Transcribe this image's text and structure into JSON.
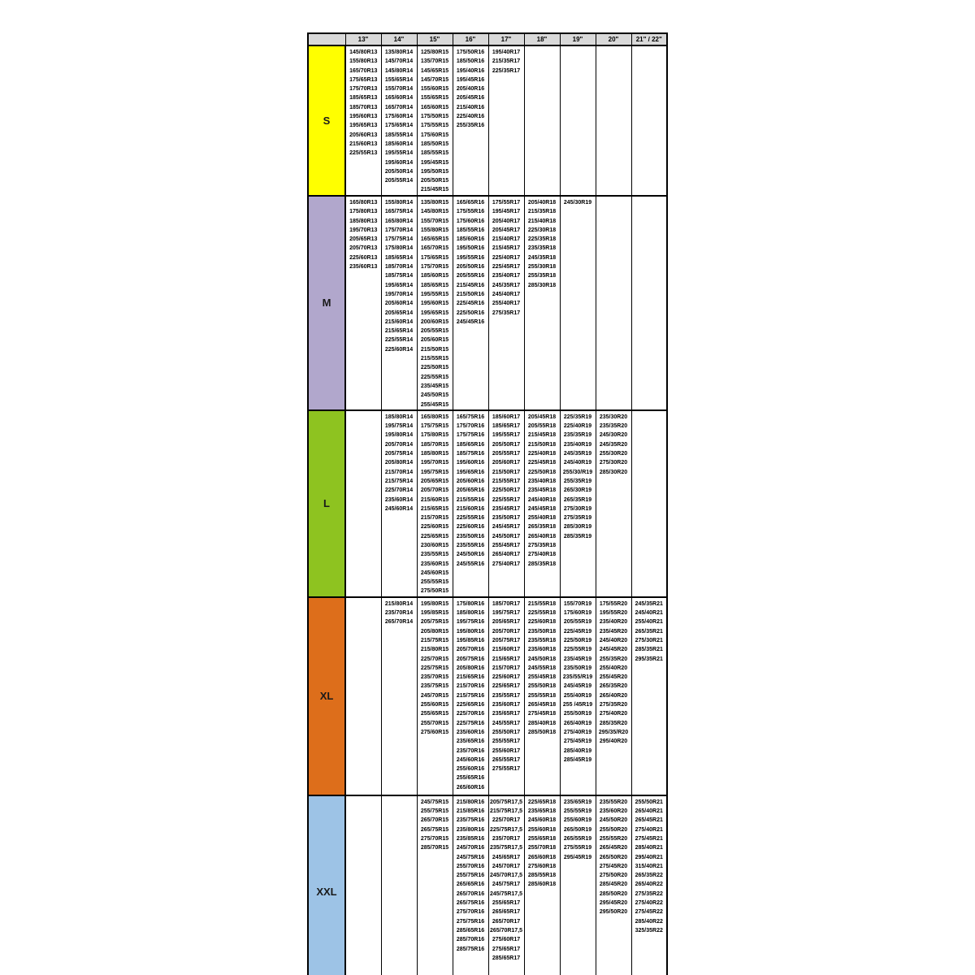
{
  "chart_data": {
    "type": "table",
    "description_colors": {
      "header_bg": "#d9d9d9",
      "S": "#ffff00",
      "M": "#b1a7cc",
      "L": "#8ec320",
      "XL": "#dd6e1b",
      "XXL": "#9dc3e6"
    },
    "header": [
      "",
      "13\"",
      "14\"",
      "15\"",
      "16\"",
      "17\"",
      "18\"",
      "19\"",
      "20\"",
      "21\" / 22\""
    ],
    "rows": [
      {
        "label": "S",
        "color": "#ffff00",
        "cols": [
          [
            "145/80R13",
            "155/80R13",
            "165/70R13",
            "175/65R13",
            "175/70R13",
            "185/65R13",
            "185/70R13",
            "195/60R13",
            "195/65R13",
            "205/60R13",
            "215/60R13",
            "225/55R13"
          ],
          [
            "135/80R14",
            "145/70R14",
            "145/80R14",
            "155/65R14",
            "155/70R14",
            "165/60R14",
            "165/70R14",
            "175/60R14",
            "175/65R14",
            "185/55R14",
            "185/60R14",
            "195/55R14",
            "195/60R14",
            "205/50R14",
            "205/55R14"
          ],
          [
            "125/80R15",
            "135/70R15",
            "145/65R15",
            "145/70R15",
            "155/60R15",
            "155/65R15",
            "165/60R15",
            "175/50R15",
            "175/55R15",
            "175/60R15",
            "185/50R15",
            "185/55R15",
            "195/45R15",
            "195/50R15",
            "205/50R15",
            "215/45R15"
          ],
          [
            "175/50R16",
            "185/50R16",
            "195/40R16",
            "195/45R16",
            "205/40R16",
            "205/45R16",
            "215/40R16",
            "225/40R16",
            "255/35R16"
          ],
          [
            "195/40R17",
            "215/35R17",
            "225/35R17"
          ],
          [],
          [],
          [],
          []
        ]
      },
      {
        "label": "M",
        "color": "#b1a7cc",
        "cols": [
          [
            "165/80R13",
            "175/80R13",
            "185/80R13",
            "195/70R13",
            "205/65R13",
            "205/70R13",
            "225/60R13",
            "235/60R13"
          ],
          [
            "155/80R14",
            "165/75R14",
            "165/80R14",
            "175/70R14",
            "175/75R14",
            "175/80R14",
            "185/65R14",
            "185/70R14",
            "185/75R14",
            "195/65R14",
            "195/70R14",
            "205/60R14",
            "205/65R14",
            "215/60R14",
            "215/65R14",
            "225/55R14",
            "225/60R14"
          ],
          [
            "135/80R15",
            "145/80R15",
            "155/70R15",
            "155/80R15",
            "165/65R15",
            "165/70R15",
            "175/65R15",
            "175/70R15",
            "185/60R15",
            "185/65R15",
            "195/55R15",
            "195/60R15",
            "195/65R15",
            "200/60R15",
            "205/55R15",
            "205/60R15",
            "215/50R15",
            "215/55R15",
            "225/50R15",
            "225/55R15",
            "235/45R15",
            "245/50R15",
            "255/45R15"
          ],
          [
            "165/65R16",
            "175/55R16",
            "175/60R16",
            "185/55R16",
            "185/60R16",
            "195/50R16",
            "195/55R16",
            "205/50R16",
            "205/55R16",
            "215/45R16",
            "215/50R16",
            "225/45R16",
            "225/50R16",
            "245/45R16"
          ],
          [
            "175/55R17",
            "195/45R17",
            "205/40R17",
            "205/45R17",
            "215/40R17",
            "215/45R17",
            "225/40R17",
            "225/45R17",
            "235/40R17",
            "245/35R17",
            "245/40R17",
            "255/40R17",
            "275/35R17"
          ],
          [
            "205/40R18",
            "215/35R18",
            "215/40R18",
            "225/30R18",
            "225/35R18",
            "235/35R18",
            "245/35R18",
            "255/30R18",
            "255/35R18",
            "285/30R18"
          ],
          [
            "245/30R19"
          ],
          [],
          []
        ]
      },
      {
        "label": "L",
        "color": "#8ec320",
        "cols": [
          [],
          [
            "185/80R14",
            "195/75R14",
            "195/80R14",
            "205/70R14",
            "205/75R14",
            "205/80R14",
            "215/70R14",
            "215/75R14",
            "225/70R14",
            "235/60R14",
            "245/60R14"
          ],
          [
            "165/80R15",
            "175/75R15",
            "175/80R15",
            "185/70R15",
            "185/80R15",
            "195/70R15",
            "195/75R15",
            "205/65R15",
            "205/70R15",
            "215/60R15",
            "215/65R15",
            "215/70R15",
            "225/60R15",
            "225/65R15",
            "230/60R15",
            "235/55R15",
            "235/60R15",
            "245/60R15",
            "255/55R15",
            "275/50R15"
          ],
          [
            "165/75R16",
            "175/70R16",
            "175/75R16",
            "185/65R16",
            "185/75R16",
            "195/60R16",
            "195/65R16",
            "205/60R16",
            "205/65R16",
            "215/55R16",
            "215/60R16",
            "225/55R16",
            "225/60R16",
            "235/50R16",
            "235/55R16",
            "245/50R16",
            "245/55R16"
          ],
          [
            "185/60R17",
            "185/65R17",
            "195/55R17",
            "205/50R17",
            "205/55R17",
            "205/60R17",
            "215/50R17",
            "215/55R17",
            "225/50R17",
            "225/55R17",
            "235/45R17",
            "235/50R17",
            "245/45R17",
            "245/50R17",
            "255/45R17",
            "265/40R17",
            "275/40R17"
          ],
          [
            "205/45R18",
            "205/55R18",
            "215/45R18",
            "215/50R18",
            "225/40R18",
            "225/45R18",
            "225/50R18",
            "235/40R18",
            "235/45R18",
            "245/40R18",
            "245/45R18",
            "255/40R18",
            "265/35R18",
            "265/40R18",
            "275/35R18",
            "275/40R18",
            "285/35R18"
          ],
          [
            "225/35R19",
            "225/40R19",
            "235/35R19",
            "235/40R19",
            "245/35R19",
            "245/40R19",
            "255/30/R19",
            "255/35R19",
            "265/30R19",
            "265/35R19",
            "275/30R19",
            "275/35R19",
            "285/30R19",
            "285/35R19"
          ],
          [
            "235/30R20",
            "235/35R20",
            "245/30R20",
            "245/35R20",
            "255/30R20",
            "275/30R20",
            "285/30R20"
          ],
          []
        ]
      },
      {
        "label": "XL",
        "color": "#dd6e1b",
        "cols": [
          [],
          [
            "215/80R14",
            "235/70R14",
            "265/70R14"
          ],
          [
            "195/80R15",
            "195/85R15",
            "205/75R15",
            "205/80R15",
            "215/75R15",
            "215/80R15",
            "225/70R15",
            "225/75R15",
            "235/70R15",
            "235/75R15",
            "245/70R15",
            "255/60R15",
            "255/65R15",
            "255/70R15",
            "275/60R15"
          ],
          [
            "175/80R16",
            "185/80R16",
            "195/75R16",
            "195/80R16",
            "195/85R16",
            "205/70R16",
            "205/75R16",
            "205/80R16",
            "215/65R16",
            "215/70R16",
            "215/75R16",
            "225/65R16",
            "225/70R16",
            "225/75R16",
            "235/60R16",
            "235/65R16",
            "235/70R16",
            "245/60R16",
            "255/60R16",
            "255/65R16",
            "265/60R16"
          ],
          [
            "185/70R17",
            "195/75R17",
            "205/65R17",
            "205/70R17",
            "205/75R17",
            "215/60R17",
            "215/65R17",
            "215/70R17",
            "225/60R17",
            "225/65R17",
            "235/55R17",
            "235/60R17",
            "235/65R17",
            "245/55R17",
            "255/50R17",
            "255/55R17",
            "255/60R17",
            "265/55R17",
            "275/55R17"
          ],
          [
            "215/55R18",
            "225/55R18",
            "225/60R18",
            "235/50R18",
            "235/55R18",
            "235/60R18",
            "245/50R18",
            "245/55R18",
            "255/45R18",
            "255/50R18",
            "255/55R18",
            "265/45R18",
            "275/45R18",
            "285/40R18",
            "285/50R18"
          ],
          [
            "155/70R19",
            "175/60R19",
            "205/55R19",
            "225/45R19",
            "225/50R19",
            "225/55R19",
            "235/45R19",
            "235/50R19",
            "235/55/R19",
            "245/45R19",
            "255/40R19",
            "255 /45R19",
            "255/50R19",
            "265/40R19",
            "275/40R19",
            "275/45R19",
            "285/40R19",
            "285/45R19"
          ],
          [
            "175/55R20",
            "195/55R20",
            "235/40R20",
            "235/45R20",
            "245/40R20",
            "245/45R20",
            "255/35R20",
            "255/40R20",
            "255/45R20",
            "265/35R20",
            "265/40R20",
            "275/35R20",
            "275/40R20",
            "285/35R20",
            "295/35/R20",
            "295/40R20"
          ],
          [
            "245/35R21",
            "245/40R21",
            "255/40R21",
            "265/35R21",
            "275/30R21",
            "285/35R21",
            "295/35R21"
          ]
        ]
      },
      {
        "label": "XXL",
        "color": "#9dc3e6",
        "cols": [
          [],
          [],
          [
            "245/75R15",
            "255/75R15",
            "265/70R15",
            "265/75R15",
            "275/70R15",
            "285/70R15"
          ],
          [
            "215/80R16",
            "215/85R16",
            "235/75R16",
            "235/80R16",
            "235/85R16",
            "245/70R16",
            "245/75R16",
            "255/70R16",
            "255/75R16",
            "265/65R16",
            "265/70R16",
            "265/75R16",
            "275/70R16",
            "275/75R16",
            "285/65R16",
            "285/70R16",
            "285/75R16"
          ],
          [
            "205/75R17,5",
            "215/75R17,5",
            "225/70R17",
            "225/75R17,5",
            "235/70R17",
            "235/75R17,5",
            "245/65R17",
            "245/70R17",
            "245/70R17,5",
            "245/75R17",
            "245/75R17,5",
            "255/65R17",
            "265/65R17",
            "265/70R17",
            "265/70R17,5",
            "275/60R17",
            "275/65R17",
            "285/65R17"
          ],
          [
            "225/65R18",
            "235/65R18",
            "245/60R18",
            "255/60R18",
            "255/65R18",
            "255/70R18",
            "265/60R18",
            "275/60R18",
            "285/55R18",
            "285/60R18"
          ],
          [
            "235/65R19",
            "255/55R19",
            "255/60R19",
            "265/50R19",
            "265/55R19",
            "275/55R19",
            "295/45R19"
          ],
          [
            "235/55R20",
            "235/60R20",
            "245/50R20",
            "255/50R20",
            "255/55R20",
            "265/45R20",
            "265/50R20",
            "275/45R20",
            "275/50R20",
            "285/45R20",
            "285/50R20",
            "295/45R20",
            "295/50R20"
          ],
          [
            "255/50R21",
            "265/40R21",
            "265/45R21",
            "275/40R21",
            "275/45R21",
            "285/40R21",
            "295/40R21",
            "315/40R21",
            "265/35R22",
            "265/40R22",
            "275/35R22",
            "275/40R22",
            "275/45R22",
            "285/40R22",
            "325/35R22"
          ]
        ]
      }
    ]
  }
}
